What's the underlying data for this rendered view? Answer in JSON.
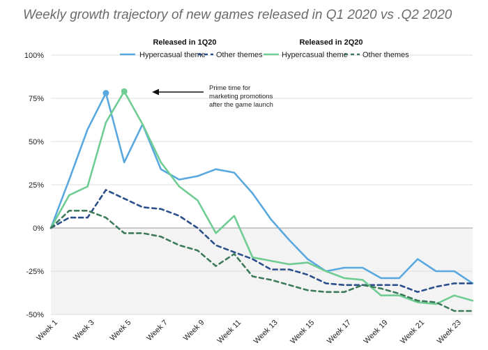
{
  "chart_data": {
    "type": "line",
    "title": "Weekly growth trajectory of new games released in Q1 2020 vs .Q2 2020",
    "xlabel": "",
    "ylabel": "",
    "ylim": [
      -50,
      100
    ],
    "yticks": [
      100,
      75,
      50,
      25,
      0,
      -25,
      -50
    ],
    "ytick_labels": [
      "100%",
      "75%",
      "50%",
      "25%",
      "0%",
      "-25%",
      "-50%"
    ],
    "x": [
      1,
      2,
      3,
      4,
      5,
      6,
      7,
      8,
      9,
      10,
      11,
      12,
      13,
      14,
      15,
      16,
      17,
      18,
      19,
      20,
      21,
      22,
      23,
      24
    ],
    "xtick_labels": [
      "Week 1",
      "Week 3",
      "Week 5",
      "Week 7",
      "Week 9",
      "Week 11",
      "Week 13",
      "Week 15",
      "Week 17",
      "Week 19",
      "Week 21",
      "Week 23"
    ],
    "xtick_positions": [
      1,
      3,
      5,
      7,
      9,
      11,
      13,
      15,
      17,
      19,
      21,
      23
    ],
    "legend": {
      "group_1_heading": "Released in 1Q20",
      "group_2_heading": "Released in 2Q20"
    },
    "colors": {
      "q1": "#5aa8e0",
      "q1_other": "#2b4f8a",
      "q2": "#6fcc92",
      "q2_other": "#3d7a5a",
      "negative_band": "#f3f3f3",
      "grid": "#dddddd",
      "axis": "#999999"
    },
    "series": [
      {
        "name": "Hypercasual theme",
        "group": "Released in 1Q20",
        "style": "solid",
        "color": "#5aa8e0",
        "values": [
          0,
          28,
          57,
          78,
          38,
          60,
          34,
          28,
          30,
          34,
          32,
          20,
          5,
          -7,
          -18,
          -25,
          -23,
          -23,
          -29,
          -29,
          -18,
          -25,
          -25,
          -32
        ]
      },
      {
        "name": "Other themes",
        "group": "Released in 1Q20",
        "style": "dashed",
        "color": "#2b4f8a",
        "values": [
          0,
          6,
          6,
          22,
          17,
          12,
          11,
          7,
          0,
          -10,
          -14,
          -18,
          -24,
          -24,
          -27,
          -32,
          -33,
          -33,
          -33,
          -33,
          -37,
          -34,
          -32,
          -32
        ]
      },
      {
        "name": "Hypercasual theme",
        "group": "Released in 2Q20",
        "style": "solid",
        "color": "#6fcc92",
        "values": [
          0,
          19,
          24,
          61,
          79,
          60,
          38,
          24,
          16,
          -3,
          7,
          -17,
          -19,
          -21,
          -20,
          -25,
          -29,
          -30,
          -39,
          -39,
          -43,
          -44,
          -39,
          -42
        ]
      },
      {
        "name": "Other themes",
        "group": "Released in 2Q20",
        "style": "dashed",
        "color": "#3d7a5a",
        "values": [
          0,
          10,
          10,
          6,
          -3,
          -3,
          -5,
          -10,
          -13,
          -22,
          -15,
          -28,
          -30,
          -33,
          -36,
          -37,
          -37,
          -33,
          -35,
          -38,
          -42,
          -43,
          -48,
          -48
        ]
      }
    ],
    "markers": [
      {
        "series": 0,
        "x": 4,
        "y": 78
      },
      {
        "series": 2,
        "x": 5,
        "y": 79
      }
    ],
    "annotation": {
      "lines": [
        "Prime time for",
        "marketing promotions",
        "after the game launch"
      ]
    }
  }
}
